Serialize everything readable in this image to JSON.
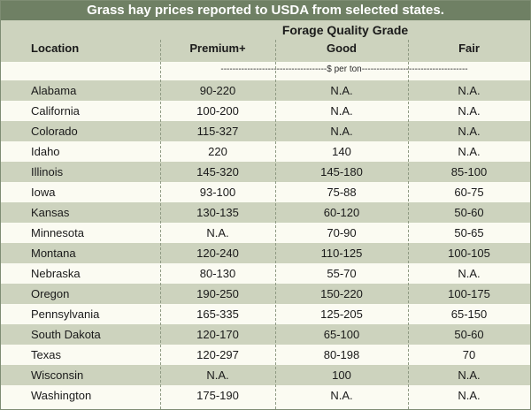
{
  "chart_data": {
    "type": "table",
    "title": "Grass hay prices reported to USDA from selected states.",
    "group_header": "Forage Quality Grade",
    "columns": [
      "Location",
      "Premium+",
      "Good",
      "Fair"
    ],
    "unit_label": "------------------------------------$ per ton------------------------------------",
    "rows": [
      {
        "location": "Alabama",
        "premium": "90-220",
        "good": "N.A.",
        "fair": "N.A."
      },
      {
        "location": "California",
        "premium": "100-200",
        "good": "N.A.",
        "fair": "N.A."
      },
      {
        "location": "Colorado",
        "premium": "115-327",
        "good": "N.A.",
        "fair": "N.A."
      },
      {
        "location": "Idaho",
        "premium": "220",
        "good": "140",
        "fair": "N.A."
      },
      {
        "location": "Illinois",
        "premium": "145-320",
        "good": "145-180",
        "fair": "85-100"
      },
      {
        "location": "Iowa",
        "premium": "93-100",
        "good": "75-88",
        "fair": "60-75"
      },
      {
        "location": "Kansas",
        "premium": "130-135",
        "good": "60-120",
        "fair": "50-60"
      },
      {
        "location": "Minnesota",
        "premium": "N.A.",
        "good": "70-90",
        "fair": "50-65"
      },
      {
        "location": "Montana",
        "premium": "120-240",
        "good": "110-125",
        "fair": "100-105"
      },
      {
        "location": "Nebraska",
        "premium": "80-130",
        "good": "55-70",
        "fair": "N.A."
      },
      {
        "location": "Oregon",
        "premium": "190-250",
        "good": "150-220",
        "fair": "100-175"
      },
      {
        "location": "Pennsylvania",
        "premium": "165-335",
        "good": "125-205",
        "fair": "65-150"
      },
      {
        "location": "South Dakota",
        "premium": "120-170",
        "good": "65-100",
        "fair": "50-60"
      },
      {
        "location": "Texas",
        "premium": "120-297",
        "good": "80-198",
        "fair": "70"
      },
      {
        "location": "Wisconsin",
        "premium": "N.A.",
        "good": "100",
        "fair": "N.A."
      },
      {
        "location": "Washington",
        "premium": "175-190",
        "good": "N.A.",
        "fair": "N.A."
      }
    ]
  },
  "colors": {
    "title_bg": "#6f8064",
    "stripe": "#cdd3be",
    "paper": "#fbfbf2"
  }
}
